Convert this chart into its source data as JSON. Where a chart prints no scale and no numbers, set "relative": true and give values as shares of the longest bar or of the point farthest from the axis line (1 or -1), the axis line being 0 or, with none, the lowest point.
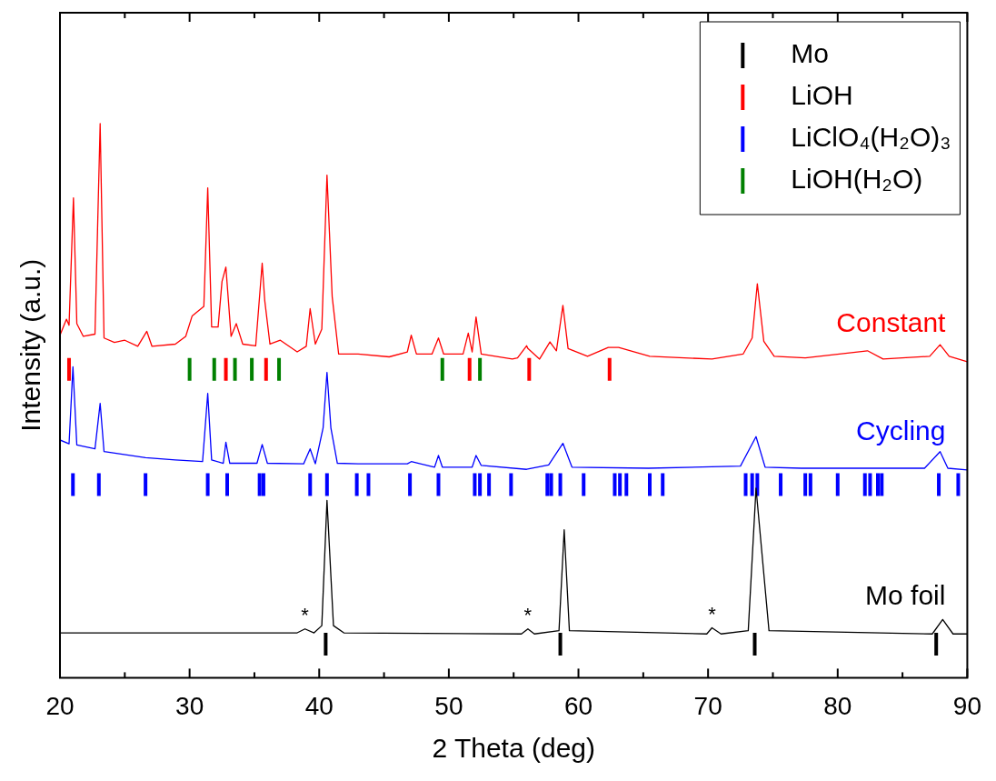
{
  "chart_data": {
    "type": "line",
    "relative": true,
    "xlabel": "2 Theta (deg)",
    "ylabel": "Intensity (a.u.)",
    "xlim": [
      20,
      90
    ],
    "xticks": [
      20,
      {
        "value": 25,
        "label": null
      },
      30,
      {
        "value": 35,
        "label": null
      },
      40,
      {
        "value": 45,
        "label": null
      },
      50,
      {
        "value": 55,
        "label": null
      },
      60,
      {
        "value": 65,
        "label": null
      },
      70,
      {
        "value": 75,
        "label": null
      },
      80,
      {
        "value": 85,
        "label": null
      },
      90
    ],
    "legend": "top right",
    "marker": "none",
    "line_style": "solid",
    "annotations": [
      {
        "text": "*",
        "x": 38.9,
        "y": 0.088
      },
      {
        "text": "*",
        "x": 56.1,
        "y": 0.088
      },
      {
        "text": "*",
        "x": 70.3,
        "y": 0.09
      }
    ],
    "series": [
      {
        "name": "Constant",
        "color": "#ff0000",
        "x": [
          20.0,
          20.5,
          20.7,
          21.04,
          21.3,
          21.8,
          22.7,
          23.1,
          23.4,
          24.2,
          25.0,
          26.0,
          26.7,
          27.1,
          28.9,
          29.7,
          30.2,
          31.1,
          31.4,
          31.7,
          32.2,
          32.5,
          32.8,
          33.2,
          33.6,
          34.1,
          35.1,
          35.6,
          35.8,
          36.2,
          37.0,
          38.3,
          39.0,
          39.3,
          39.7,
          40.2,
          40.6,
          41.0,
          41.5,
          43.0,
          45.4,
          46.8,
          47.1,
          47.5,
          48.7,
          49.2,
          49.6,
          51.1,
          51.5,
          51.8,
          52.1,
          52.5,
          54.9,
          55.3,
          56.0,
          56.1,
          57.0,
          57.8,
          58.3,
          58.8,
          59.2,
          60.7,
          62.3,
          63.1,
          65.5,
          70.3,
          72.7,
          73.4,
          73.8,
          74.3,
          75.1,
          77.5,
          82.3,
          83.5,
          87.1,
          87.9,
          88.6,
          90.0
        ],
        "values": [
          0.618,
          0.647,
          0.636,
          0.866,
          0.639,
          0.616,
          0.62,
          1.0,
          0.613,
          0.605,
          0.609,
          0.598,
          0.625,
          0.598,
          0.602,
          0.616,
          0.653,
          0.67,
          0.884,
          0.633,
          0.633,
          0.715,
          0.741,
          0.616,
          0.639,
          0.602,
          0.599,
          0.748,
          0.68,
          0.602,
          0.609,
          0.588,
          0.598,
          0.666,
          0.602,
          0.629,
          0.907,
          0.688,
          0.584,
          0.584,
          0.579,
          0.588,
          0.618,
          0.584,
          0.584,
          0.613,
          0.584,
          0.584,
          0.622,
          0.588,
          0.651,
          0.584,
          0.575,
          0.577,
          0.599,
          0.594,
          0.575,
          0.606,
          0.59,
          0.672,
          0.594,
          0.58,
          0.596,
          0.596,
          0.58,
          0.575,
          0.584,
          0.613,
          0.711,
          0.607,
          0.58,
          0.577,
          0.59,
          0.575,
          0.58,
          0.601,
          0.58,
          0.57
        ]
      },
      {
        "name": "Cycling",
        "color": "#0000ff",
        "x": [
          20.0,
          20.7,
          21.0,
          21.3,
          22.7,
          23.1,
          23.4,
          26.6,
          28.9,
          31.0,
          31.4,
          31.7,
          32.6,
          32.8,
          33.1,
          35.2,
          35.6,
          36.0,
          38.8,
          39.3,
          39.7,
          40.3,
          40.6,
          40.9,
          41.4,
          43.0,
          46.8,
          47.1,
          48.9,
          49.2,
          49.5,
          51.8,
          52.1,
          52.5,
          56.0,
          57.7,
          58.8,
          59.5,
          65.4,
          72.5,
          73.7,
          74.4,
          77.2,
          86.7,
          87.9,
          88.5,
          90.0
        ],
        "values": [
          0.429,
          0.422,
          0.561,
          0.42,
          0.413,
          0.495,
          0.408,
          0.397,
          0.393,
          0.39,
          0.513,
          0.393,
          0.387,
          0.425,
          0.387,
          0.387,
          0.421,
          0.387,
          0.386,
          0.413,
          0.386,
          0.451,
          0.551,
          0.451,
          0.387,
          0.386,
          0.386,
          0.39,
          0.38,
          0.401,
          0.38,
          0.38,
          0.401,
          0.383,
          0.376,
          0.384,
          0.423,
          0.38,
          0.378,
          0.382,
          0.435,
          0.38,
          0.378,
          0.378,
          0.408,
          0.378,
          0.375
        ]
      },
      {
        "name": "Mo foil",
        "color": "#000000",
        "x": [
          20.0,
          38.3,
          38.9,
          39.6,
          40.2,
          40.6,
          41.1,
          41.9,
          55.6,
          56.1,
          56.6,
          58.5,
          58.9,
          59.3,
          69.9,
          70.3,
          71.0,
          73.1,
          73.7,
          74.7,
          87.3,
          88.1,
          88.9,
          90.0
        ],
        "values": [
          0.081,
          0.081,
          0.088,
          0.081,
          0.094,
          0.32,
          0.094,
          0.081,
          0.079,
          0.088,
          0.079,
          0.085,
          0.267,
          0.085,
          0.079,
          0.09,
          0.079,
          0.085,
          0.342,
          0.085,
          0.079,
          0.105,
          0.079,
          0.079
        ]
      },
      {
        "name": "Mo",
        "color": "#000000",
        "x": [
          40.5,
          40.5,
          null,
          58.6,
          58.6,
          null,
          73.6,
          73.6,
          null,
          87.6,
          87.6
        ],
        "values": [
          0.04,
          0.081,
          null,
          0.04,
          0.081,
          null,
          0.04,
          0.081,
          null,
          0.04,
          0.081
        ]
      },
      {
        "name": "LiOH",
        "color": "#ff0000",
        "x": [
          20.7,
          20.7,
          null,
          32.8,
          32.8,
          null,
          35.9,
          35.9,
          null,
          51.6,
          51.6,
          null,
          56.2,
          56.2,
          null,
          62.4,
          62.4
        ],
        "values": [
          0.536,
          0.577,
          null,
          0.536,
          0.577,
          null,
          0.536,
          0.577,
          null,
          0.536,
          0.577,
          null,
          0.536,
          0.577,
          null,
          0.536,
          0.577
        ]
      },
      {
        "name": "LiClO₄(H₂O)₃",
        "color": "#0000ff",
        "x": [
          21.0,
          21.0,
          null,
          23.0,
          23.0,
          null,
          26.6,
          26.6,
          null,
          31.4,
          31.4,
          null,
          32.9,
          32.9,
          null,
          35.4,
          35.4,
          null,
          35.7,
          35.7,
          null,
          39.3,
          39.3,
          null,
          40.6,
          40.6,
          null,
          42.9,
          42.9,
          null,
          43.8,
          43.8,
          null,
          47.0,
          47.0,
          null,
          49.2,
          49.2,
          null,
          52.0,
          52.0,
          null,
          52.4,
          52.4,
          null,
          53.1,
          53.1,
          null,
          54.8,
          54.8,
          null,
          57.6,
          57.6,
          null,
          57.9,
          57.9,
          null,
          58.6,
          58.6,
          null,
          60.4,
          60.4,
          null,
          62.8,
          62.8,
          null,
          63.2,
          63.2,
          null,
          63.7,
          63.7,
          null,
          65.5,
          65.5,
          null,
          66.5,
          66.5,
          null,
          72.9,
          72.9,
          null,
          73.4,
          73.4,
          null,
          73.8,
          73.8,
          null,
          75.6,
          75.6,
          null,
          77.5,
          77.5,
          null,
          77.9,
          77.9,
          null,
          80.0,
          80.0,
          null,
          82.1,
          82.1,
          null,
          82.5,
          82.5,
          null,
          83.1,
          83.1,
          null,
          83.4,
          83.4,
          null,
          87.8,
          87.8,
          null,
          89.3,
          89.3
        ],
        "values": [
          0.328,
          0.369,
          null,
          0.328,
          0.369,
          null,
          0.328,
          0.369,
          null,
          0.328,
          0.369,
          null,
          0.328,
          0.369,
          null,
          0.328,
          0.369,
          null,
          0.328,
          0.369,
          null,
          0.328,
          0.369,
          null,
          0.328,
          0.369,
          null,
          0.328,
          0.369,
          null,
          0.328,
          0.369,
          null,
          0.328,
          0.369,
          null,
          0.328,
          0.369,
          null,
          0.328,
          0.369,
          null,
          0.328,
          0.369,
          null,
          0.328,
          0.369,
          null,
          0.328,
          0.369,
          null,
          0.328,
          0.369,
          null,
          0.328,
          0.369,
          null,
          0.328,
          0.369,
          null,
          0.328,
          0.369,
          null,
          0.328,
          0.369,
          null,
          0.328,
          0.369,
          null,
          0.328,
          0.369,
          null,
          0.328,
          0.369,
          null,
          0.328,
          0.369,
          null,
          0.328,
          0.369,
          null,
          0.328,
          0.369,
          null,
          0.328,
          0.369,
          null,
          0.328,
          0.369,
          null,
          0.328,
          0.369,
          null,
          0.328,
          0.369,
          null,
          0.328,
          0.369,
          null,
          0.328,
          0.369,
          null,
          0.328,
          0.369,
          null,
          0.328,
          0.369,
          null,
          0.328,
          0.369,
          null,
          0.328,
          0.369,
          null,
          0.328,
          0.369
        ]
      },
      {
        "name": "LiOH(H₂O)",
        "color": "#008000",
        "x": [
          30.0,
          30.0,
          null,
          31.9,
          31.9,
          null,
          33.5,
          33.5,
          null,
          34.8,
          34.8,
          null,
          36.9,
          36.9,
          null,
          49.5,
          49.5,
          null,
          52.4,
          52.4
        ],
        "values": [
          0.536,
          0.577,
          null,
          0.536,
          0.577,
          null,
          0.536,
          0.577,
          null,
          0.536,
          0.577,
          null,
          0.536,
          0.577,
          null,
          0.536,
          0.577,
          null,
          0.536,
          0.577
        ]
      }
    ]
  }
}
